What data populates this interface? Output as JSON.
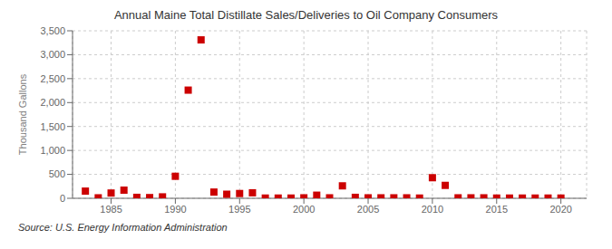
{
  "chart_data": {
    "type": "scatter",
    "title": "Annual Maine Total Distillate Sales/Deliveries to Oil Company Consumers",
    "y_label": "Thousand Gallons",
    "annotations": [
      "Source: U.S. Energy Information Administration"
    ],
    "x": [
      1983,
      1984,
      1985,
      1986,
      1987,
      1988,
      1989,
      1990,
      1991,
      1992,
      1993,
      1994,
      1995,
      1996,
      1997,
      1998,
      1999,
      2000,
      2001,
      2002,
      2003,
      2004,
      2005,
      2006,
      2007,
      2008,
      2009,
      2010,
      2011,
      2012,
      2013,
      2014,
      2015,
      2016,
      2017,
      2018,
      2019,
      2020
    ],
    "values": [
      150,
      10,
      110,
      170,
      20,
      15,
      30,
      460,
      2260,
      3310,
      130,
      85,
      100,
      115,
      5,
      5,
      5,
      10,
      65,
      10,
      260,
      20,
      10,
      10,
      10,
      10,
      5,
      430,
      270,
      10,
      10,
      10,
      5,
      5,
      5,
      5,
      5,
      5
    ],
    "color": "#cc0000",
    "marker": "square",
    "xlim": [
      1982,
      2022
    ],
    "xticks": [
      1985,
      1990,
      1995,
      2000,
      2005,
      2010,
      2015,
      2020
    ],
    "ylim": [
      0,
      3500
    ],
    "yticks": [
      0,
      500,
      {
        "value": 1000,
        "label": "1,000"
      },
      {
        "value": 1500,
        "label": "1,500"
      },
      {
        "value": 2000,
        "label": "2,000"
      },
      {
        "value": 2500,
        "label": "2,500"
      },
      {
        "value": 3000,
        "label": "3,000"
      },
      {
        "value": 3500,
        "label": "3,500"
      }
    ],
    "grid": true
  }
}
